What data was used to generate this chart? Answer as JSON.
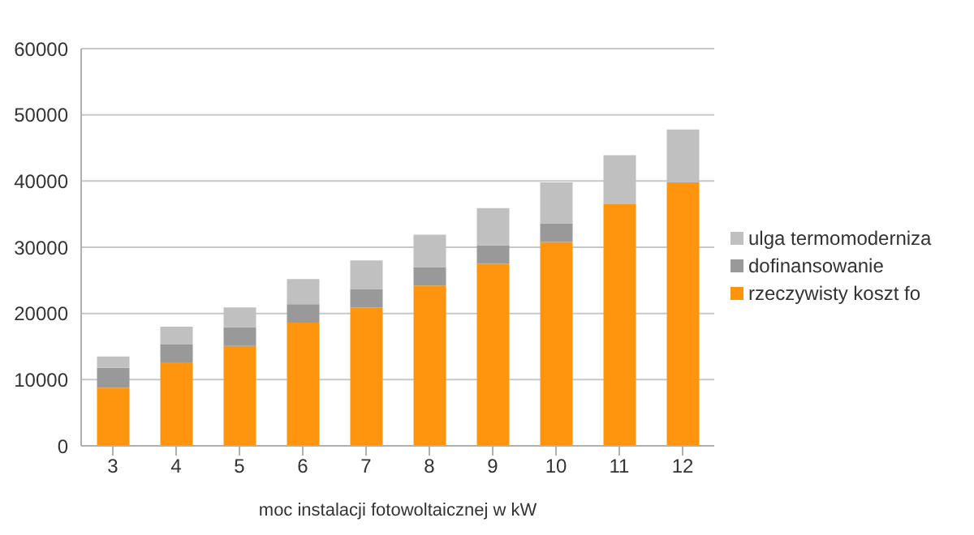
{
  "chart_data": {
    "type": "bar",
    "stacked": true,
    "xlabel": "moc instalacji fotowoltaicznej w kW",
    "categories": [
      "3",
      "4",
      "5",
      "6",
      "7",
      "8",
      "9",
      "10",
      "11",
      "12"
    ],
    "series": [
      {
        "name": "rzeczywisty koszt fo",
        "color": "#ff950e",
        "values": [
          8800,
          12600,
          15100,
          18600,
          20900,
          24200,
          27500,
          30800,
          36500,
          39800
        ]
      },
      {
        "name": "dofinansowanie",
        "color": "#999999",
        "values": [
          3000,
          2700,
          2800,
          2800,
          2800,
          2800,
          2800,
          2800,
          0,
          0
        ]
      },
      {
        "name": "ulga termomoderniza",
        "color": "#c0c0c0",
        "values": [
          1700,
          2700,
          3000,
          3800,
          4300,
          4900,
          5600,
          6200,
          7400,
          8000
        ]
      }
    ],
    "ylim": [
      0,
      60000
    ],
    "yticks": [
      0,
      10000,
      20000,
      30000,
      40000,
      50000,
      60000
    ],
    "grid": "y",
    "legend": "right"
  }
}
